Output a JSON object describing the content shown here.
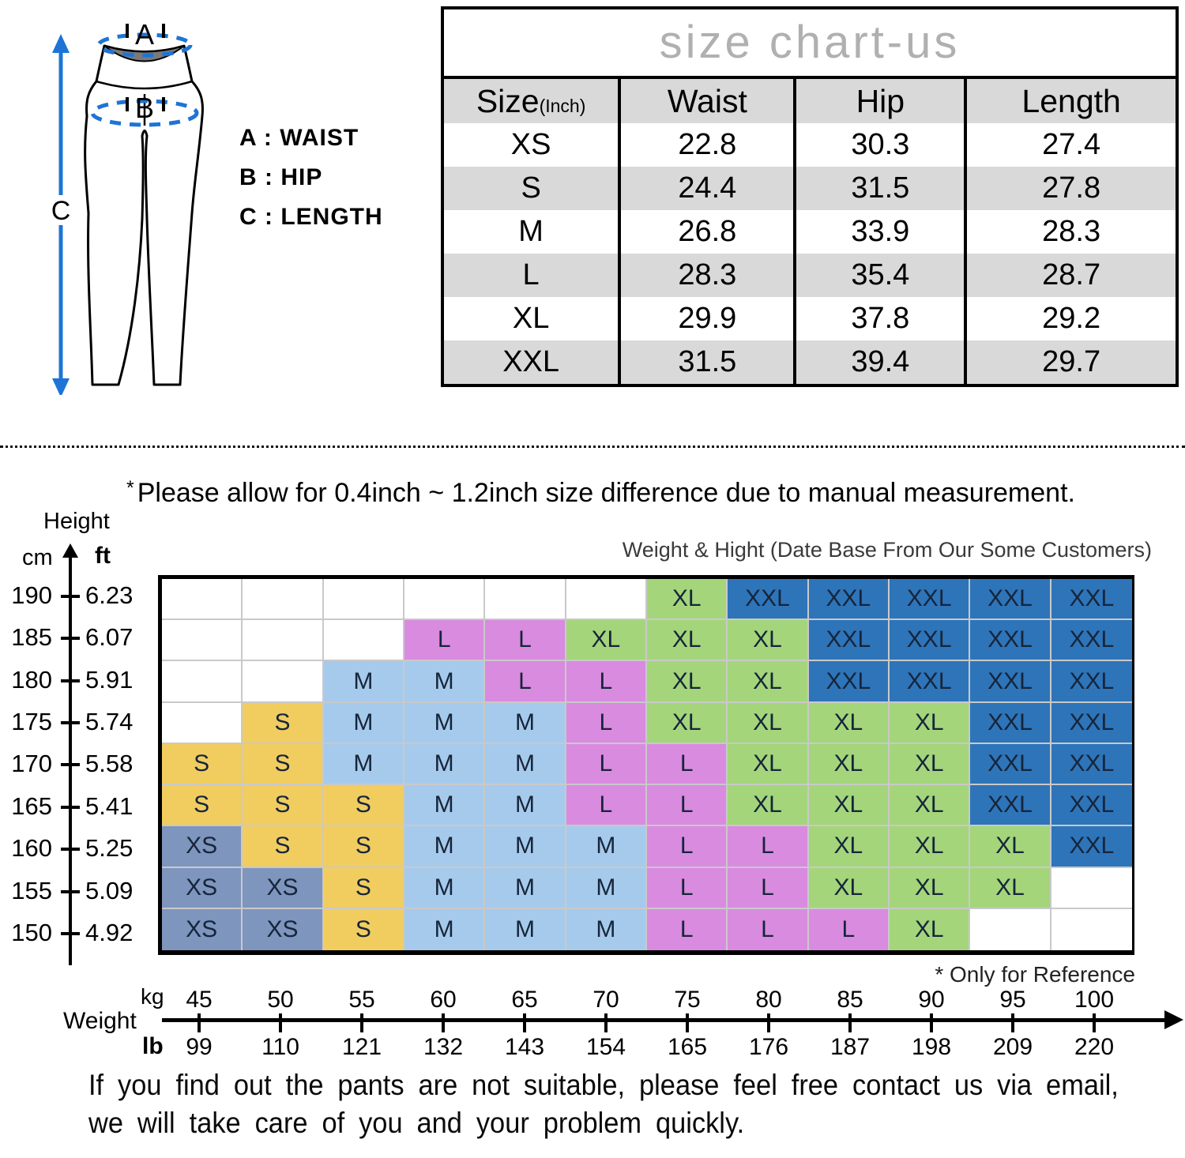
{
  "diagram": {
    "a_label": "A",
    "b_label": "B",
    "c_label": "C",
    "legend": [
      "A : WAIST",
      "B : HIP",
      "C : LENGTH"
    ]
  },
  "table_header": {
    "size": "Size",
    "unit": "(Inch)",
    "waist": "Waist",
    "hip": "Hip",
    "length": "Length"
  },
  "note_star": "*",
  "note_text": "Please allow for 0.4inch ~ 1.2inch size difference due to manual measurement.",
  "axis_labels": {
    "height": "Height",
    "cm": "cm",
    "ft": "ft",
    "weight": "Weight",
    "kg": "kg",
    "lb": "lb"
  },
  "reference_note": "* Only for Reference",
  "footer_line1": "If you find out the pants are not suitable, please feel free contact us via email,",
  "footer_line2": "we will take care of you and your problem quickly.",
  "chart_data": [
    {
      "type": "table",
      "title": "size chart-us",
      "columns": [
        "Size (Inch)",
        "Waist",
        "Hip",
        "Length"
      ],
      "rows": [
        [
          "XS",
          22.8,
          30.3,
          27.4
        ],
        [
          "S",
          24.4,
          31.5,
          27.8
        ],
        [
          "M",
          26.8,
          33.9,
          28.3
        ],
        [
          "L",
          28.3,
          35.4,
          28.7
        ],
        [
          "XL",
          29.9,
          37.8,
          29.2
        ],
        [
          "XXL",
          31.5,
          39.4,
          29.7
        ]
      ]
    },
    {
      "type": "heatmap",
      "title": "Weight & Hight (Date Base From Our Some Customers)",
      "note": "* Only for Reference",
      "x_axis": {
        "label": "Weight",
        "kg": [
          45,
          50,
          55,
          60,
          65,
          70,
          75,
          80,
          85,
          90,
          95,
          100
        ],
        "lb": [
          99,
          110,
          121,
          132,
          143,
          154,
          165,
          176,
          187,
          198,
          209,
          220
        ]
      },
      "y_axis": {
        "label": "Height",
        "cm": [
          190,
          185,
          180,
          175,
          170,
          165,
          160,
          155,
          150
        ],
        "ft": [
          "6.23",
          "6.07",
          "5.91",
          "5.74",
          "5.58",
          "5.41",
          "5.25",
          "5.09",
          "4.92"
        ]
      },
      "cells": [
        [
          "",
          "",
          "",
          "",
          "",
          "",
          "XL",
          "XXL",
          "XXL",
          "XXL",
          "XXL",
          "XXL"
        ],
        [
          "",
          "",
          "",
          "L",
          "L",
          "XL",
          "XL",
          "XL",
          "XXL",
          "XXL",
          "XXL",
          "XXL"
        ],
        [
          "",
          "",
          "M",
          "M",
          "L",
          "L",
          "XL",
          "XL",
          "XXL",
          "XXL",
          "XXL",
          "XXL"
        ],
        [
          "",
          "S",
          "M",
          "M",
          "M",
          "L",
          "XL",
          "XL",
          "XL",
          "XL",
          "XXL",
          "XXL"
        ],
        [
          "S",
          "S",
          "M",
          "M",
          "M",
          "L",
          "L",
          "XL",
          "XL",
          "XL",
          "XXL",
          "XXL"
        ],
        [
          "S",
          "S",
          "S",
          "M",
          "M",
          "L",
          "L",
          "XL",
          "XL",
          "XL",
          "XXL",
          "XXL"
        ],
        [
          "XS",
          "S",
          "S",
          "M",
          "M",
          "M",
          "L",
          "L",
          "XL",
          "XL",
          "XL",
          "XXL"
        ],
        [
          "XS",
          "XS",
          "S",
          "M",
          "M",
          "M",
          "L",
          "L",
          "XL",
          "XL",
          "XL",
          ""
        ],
        [
          "XS",
          "XS",
          "S",
          "M",
          "M",
          "M",
          "L",
          "L",
          "L",
          "XL",
          "",
          ""
        ]
      ],
      "size_colors": {
        "XS": "#7e95be",
        "S": "#f1cd60",
        "M": "#a6caec",
        "L": "#d98be0",
        "XL": "#a4d57b",
        "XXL": "#2e74b9"
      },
      "accent_blue": "#1e74d6"
    }
  ]
}
